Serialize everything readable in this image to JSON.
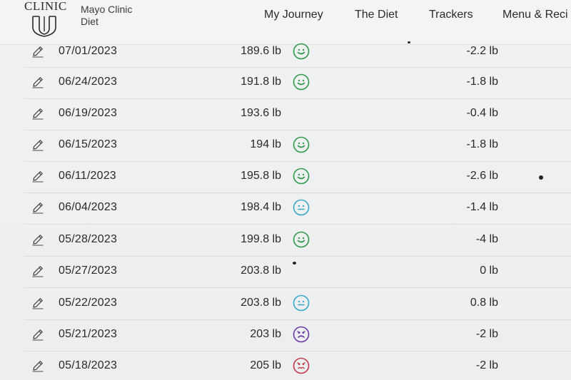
{
  "header": {
    "logo_text": "CLINIC",
    "brand_line1": "Mayo Clinic",
    "brand_line2": "Diet",
    "nav": [
      {
        "label": "My Journey"
      },
      {
        "label": "The Diet"
      },
      {
        "label": "Trackers"
      },
      {
        "label": "Menu & Reci"
      }
    ]
  },
  "colors": {
    "happy": "#2f9a4a",
    "neutral": "#3aa7c9",
    "sad": "#6b3aa8",
    "angry": "#c43a4a"
  },
  "entries": [
    {
      "date": "07/01/2023",
      "weight": "189.6 lb",
      "mood": "happy",
      "change": "-2.2 lb"
    },
    {
      "date": "06/24/2023",
      "weight": "191.8 lb",
      "mood": "happy",
      "change": "-1.8 lb"
    },
    {
      "date": "06/19/2023",
      "weight": "193.6 lb",
      "mood": "none",
      "change": "-0.4 lb"
    },
    {
      "date": "06/15/2023",
      "weight": "194 lb",
      "mood": "happy",
      "change": "-1.8 lb"
    },
    {
      "date": "06/11/2023",
      "weight": "195.8 lb",
      "mood": "happy",
      "change": "-2.6 lb"
    },
    {
      "date": "06/04/2023",
      "weight": "198.4 lb",
      "mood": "neutral",
      "change": "-1.4 lb"
    },
    {
      "date": "05/28/2023",
      "weight": "199.8 lb",
      "mood": "happy",
      "change": "-4 lb"
    },
    {
      "date": "05/27/2023",
      "weight": "203.8 lb",
      "mood": "none",
      "change": "0 lb"
    },
    {
      "date": "05/22/2023",
      "weight": "203.8 lb",
      "mood": "neutral",
      "change": "0.8 lb"
    },
    {
      "date": "05/21/2023",
      "weight": "203 lb",
      "mood": "sad",
      "change": "-2 lb"
    },
    {
      "date": "05/18/2023",
      "weight": "205 lb",
      "mood": "angry",
      "change": "-2 lb"
    }
  ]
}
